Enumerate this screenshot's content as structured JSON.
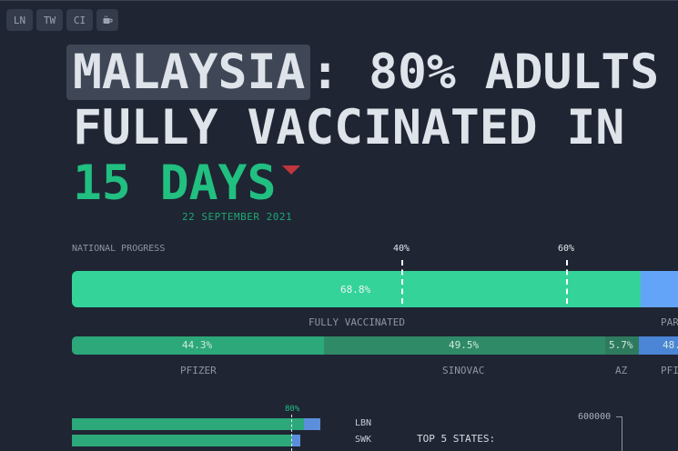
{
  "nav": {
    "buttons": [
      {
        "label": "LN"
      },
      {
        "label": "TW"
      },
      {
        "label": "CI"
      }
    ],
    "coffee_icon": "coffee-icon"
  },
  "headline": {
    "country": "MALAYSIA",
    "line1_rest": ": 80% ADULTS",
    "line2": "FULLY VACCINATED IN",
    "line3": "15 DAYS",
    "date": "22 SEPTEMBER 2021"
  },
  "national": {
    "label": "NATIONAL PROGRESS",
    "markers": [
      {
        "label": "40%"
      },
      {
        "label": "60%"
      }
    ],
    "fully_value": "68.8%",
    "fully_label": "FULLY VACCINATED",
    "partial_label": "PAR"
  },
  "vaccines": [
    {
      "value": "44.3%",
      "label": "PFIZER",
      "color": "#2ca87a"
    },
    {
      "value": "49.5%",
      "label": "SINOVAC",
      "color": "#2f8a67"
    },
    {
      "value": "5.7%",
      "label": "AZ",
      "color": "#2e7a5e"
    },
    {
      "value": "48.",
      "label": "PFI",
      "color": "#4b85d6"
    }
  ],
  "states": {
    "marker_label": "80%",
    "rows": [
      {
        "name": "LBN",
        "full": 0.84,
        "partial": 0.06
      },
      {
        "name": "SWK",
        "full": 0.8,
        "partial": 0.03
      }
    ],
    "top5_label": "TOP 5 STATES:",
    "axis_tick": "600000"
  },
  "colors": {
    "background": "#1f2533",
    "fully": "#33d399",
    "partial": "#63a4f9",
    "accent_green": "#21bf80",
    "caret_red": "#c0363d"
  }
}
